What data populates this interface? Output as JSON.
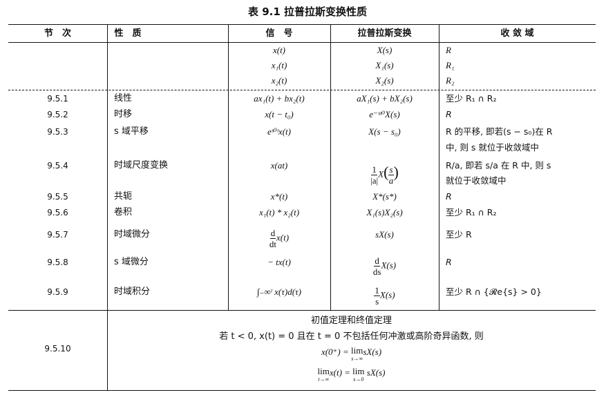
{
  "title": "表 9.1   拉普拉斯变换性质",
  "headers": [
    "节　次",
    "性　质",
    "信　号",
    "拉普拉斯变换",
    "收 敛 域"
  ],
  "base_rows": [
    {
      "signal": "x(t)",
      "transform": "X(s)",
      "roc": "R"
    },
    {
      "signal": "x₁(t)",
      "transform": "X₁(s)",
      "roc": "R₁"
    },
    {
      "signal": "x₂(t)",
      "transform": "X₂(s)",
      "roc": "R₂"
    }
  ],
  "rows": [
    {
      "section": "9.5.1",
      "property": "线性",
      "signal": "ax₁(t) + bx₂(t)",
      "transform": "aX₁(s) + bX₂(s)",
      "roc": "至少 R₁ ∩ R₂"
    },
    {
      "section": "9.5.2",
      "property": "时移",
      "signal": "x(t − t₀)",
      "transform": "e⁻ˢᵗ⁰X(s)",
      "roc": "R"
    },
    {
      "section": "9.5.3",
      "property": "s 域平移",
      "signal": "eˢ⁰ᵗx(t)",
      "transform": "X(s − s₀)",
      "roc": "R 的平移, 即若(s − s₀)在 R",
      "roc2": "中, 则 s 就位于收敛域中"
    },
    {
      "section": "9.5.4",
      "property": "时域尺度变换",
      "signal": "x(at)",
      "transform_num": "1",
      "transform_den": "|a|",
      "transform_mid": "X",
      "transform_inner_num": "s",
      "transform_inner_den": "a",
      "roc": "R/a, 即若 s/a 在 R 中, 则 s",
      "roc2": "就位于收敛域中"
    },
    {
      "section": "9.5.5",
      "property": "共轭",
      "signal": "x*(t)",
      "transform": "X*(s*)",
      "roc": "R"
    },
    {
      "section": "9.5.6",
      "property": "卷积",
      "signal": "x₁(t) * x₂(t)",
      "transform": "X₁(s)X₂(s)",
      "roc": "至少 R₁ ∩ R₂"
    },
    {
      "section": "9.5.7",
      "property": "时域微分",
      "signal_num": "d",
      "signal_den": "dt",
      "signal_rest": "x(t)",
      "transform": "sX(s)",
      "roc": "至少 R"
    },
    {
      "section": "9.5.8",
      "property": "s 域微分",
      "signal": "− tx(t)",
      "transform_num": "d",
      "transform_den": "ds",
      "transform_rest": "X(s)",
      "roc": "R"
    },
    {
      "section": "9.5.9",
      "property": "时域积分",
      "signal": "∫₋∞ᵗ x(τ)d(τ)",
      "transform_num": "1",
      "transform_den": "s",
      "transform_rest": "X(s)",
      "roc": "至少 R ∩ {𝓡e{s} > 0}"
    }
  ],
  "last": {
    "section": "9.5.10",
    "heading": "初值定理和终值定理",
    "condition": "若 t < 0, x(t) = 0 且在 t = 0 不包括任何冲激或高阶奇异函数, 则",
    "eq1_left": "x(0⁺) = ",
    "eq1_lim": "lim",
    "eq1_sub": "s→∞",
    "eq1_right": "sX(s)",
    "eq2_lim": "lim",
    "eq2_sub": "t→∞",
    "eq2_mid": "x(t) = ",
    "eq2_lim2": "lim",
    "eq2_sub2": "s→0",
    "eq2_right": " sX(s)"
  }
}
